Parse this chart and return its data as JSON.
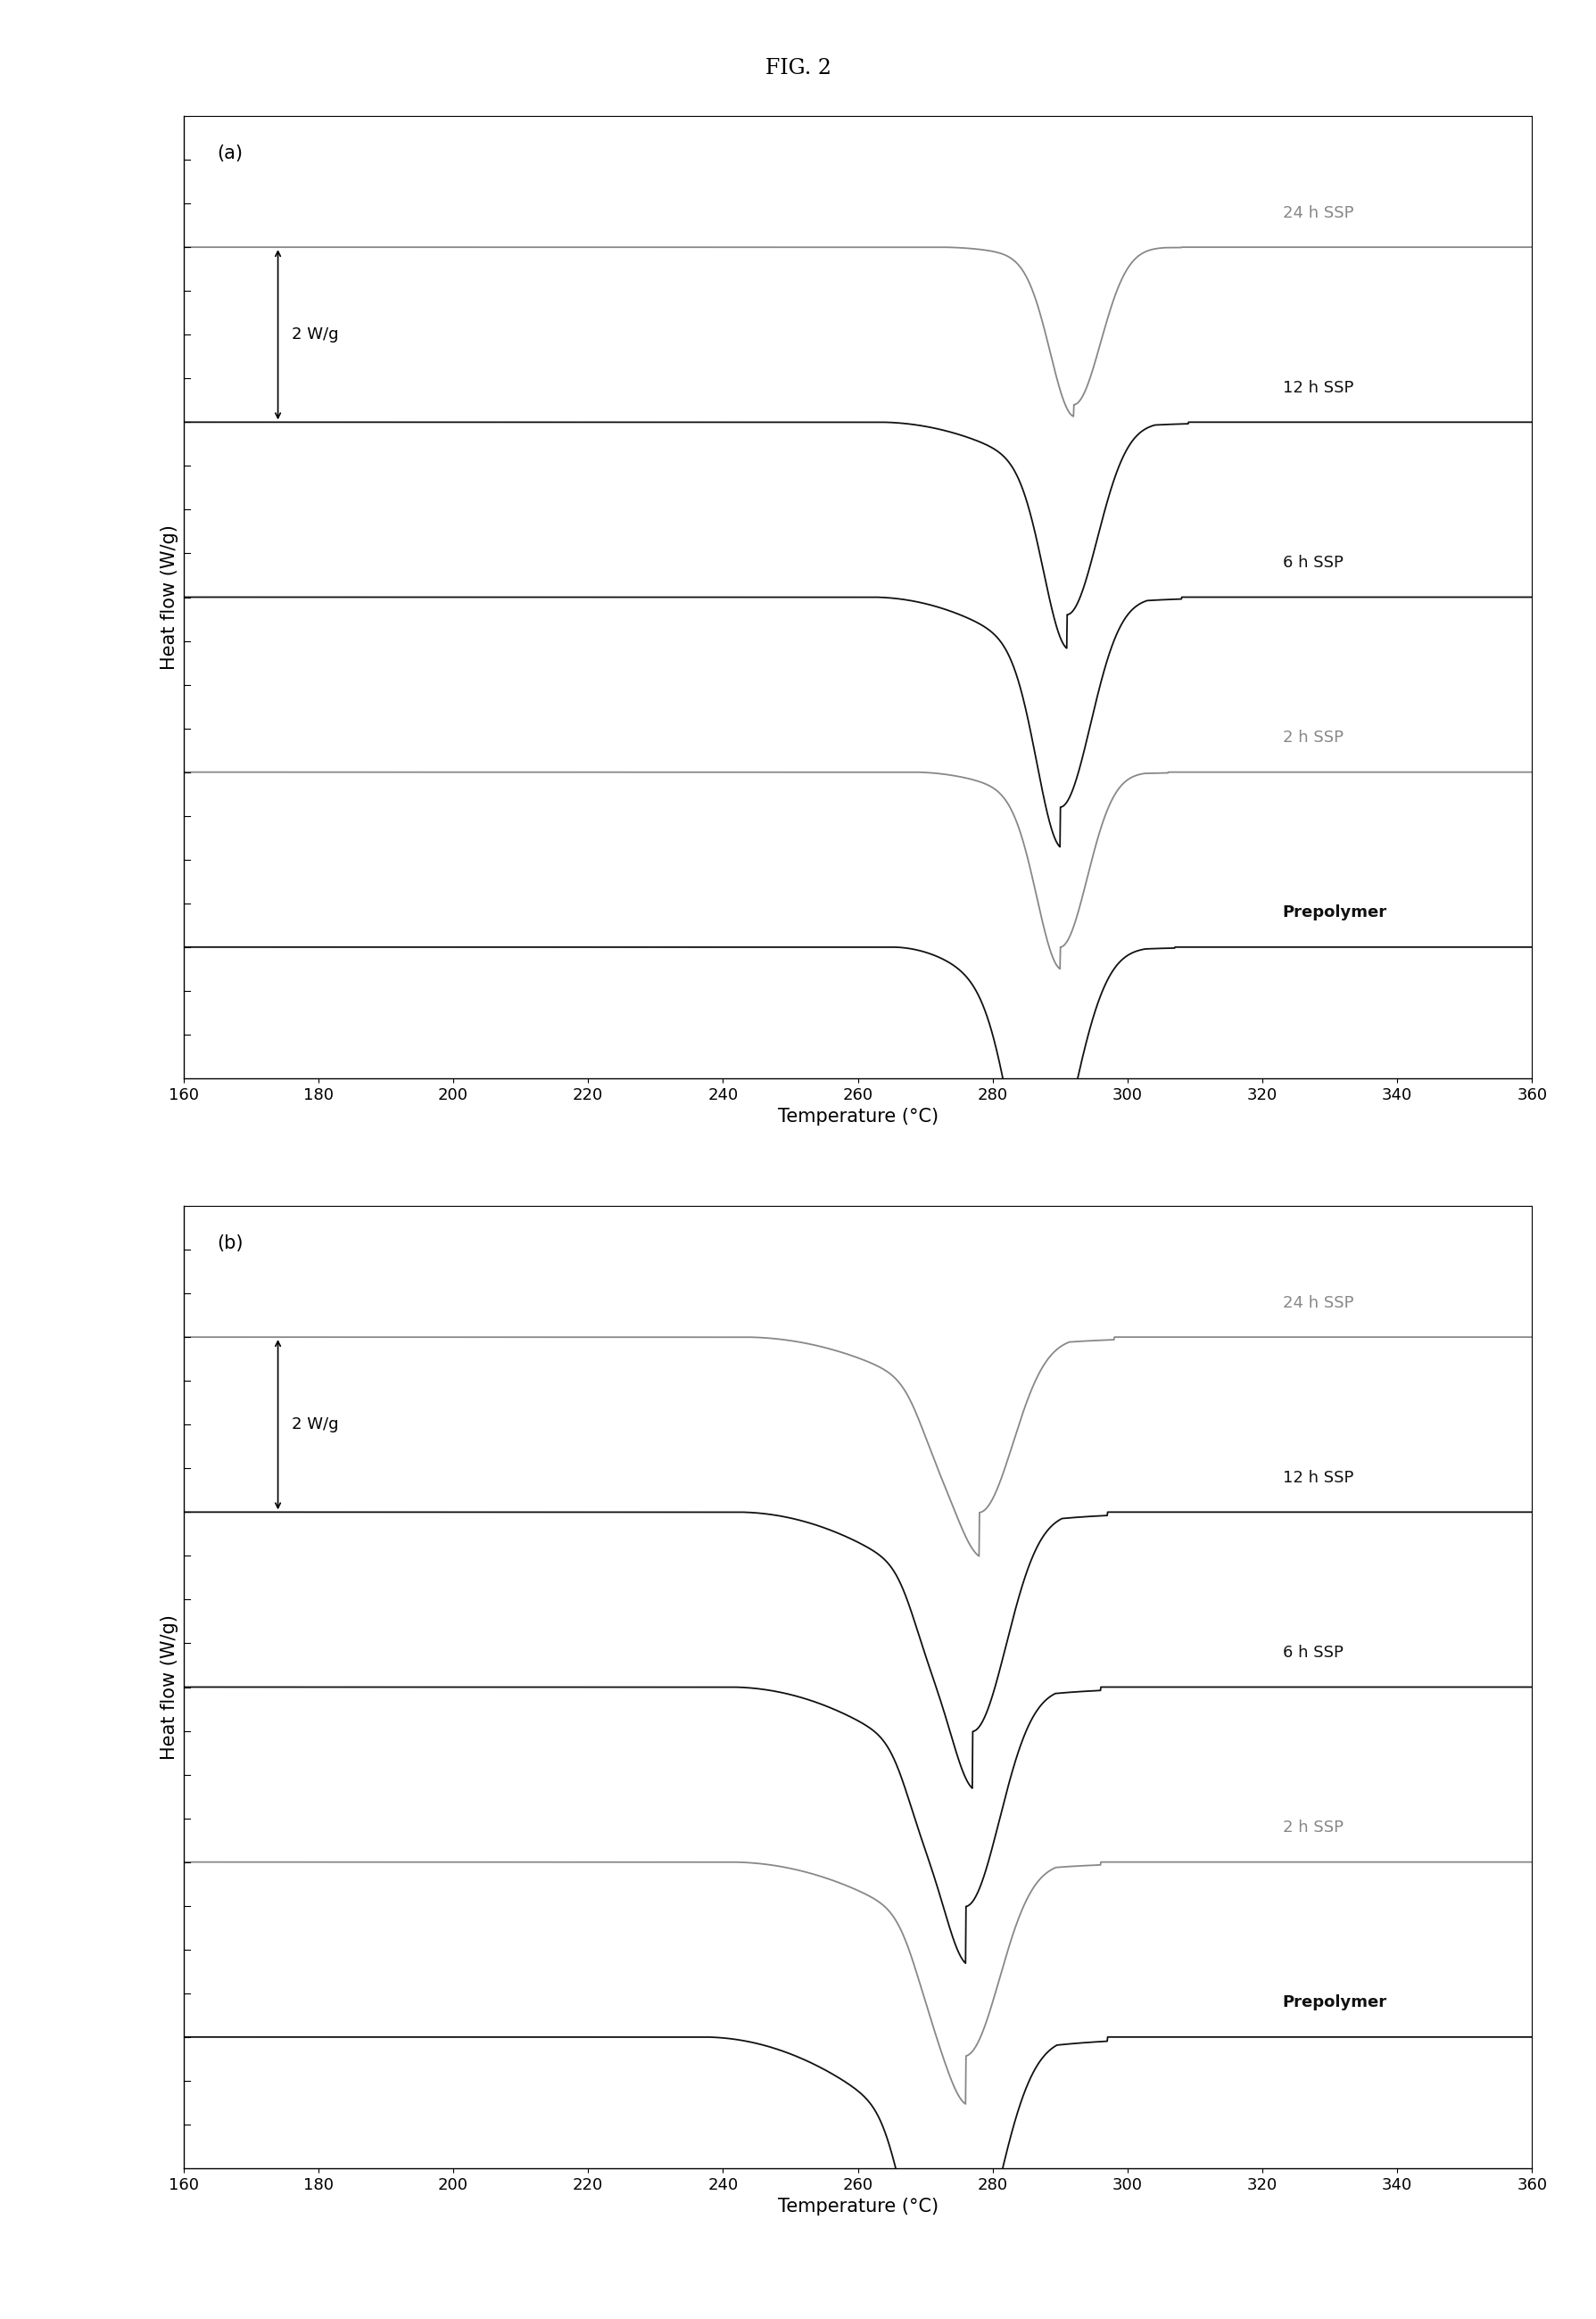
{
  "title": "FIG. 2",
  "xmin": 160,
  "xmax": 360,
  "xlabel": "Temperature (°C)",
  "ylabel": "Heat flow (W/g)",
  "panel_a_label": "(a)",
  "panel_b_label": "(b)",
  "scale_label": "2 W/g",
  "curve_labels_a": [
    "24 h SSP",
    "12 h SSP",
    "6 h SSP",
    "2 h SSP",
    "Prepolymer"
  ],
  "curve_labels_b": [
    "24 h SSP",
    "12 h SSP",
    "6 h SSP",
    "2 h SSP",
    "Prepolymer"
  ],
  "curve_colors_a": [
    "#888888",
    "#111111",
    "#111111",
    "#888888",
    "#111111"
  ],
  "curve_colors_b": [
    "#888888",
    "#111111",
    "#111111",
    "#888888",
    "#111111"
  ],
  "background_color": "#ffffff",
  "tick_fontsize": 13,
  "label_fontsize": 15,
  "annotation_fontsize": 13
}
